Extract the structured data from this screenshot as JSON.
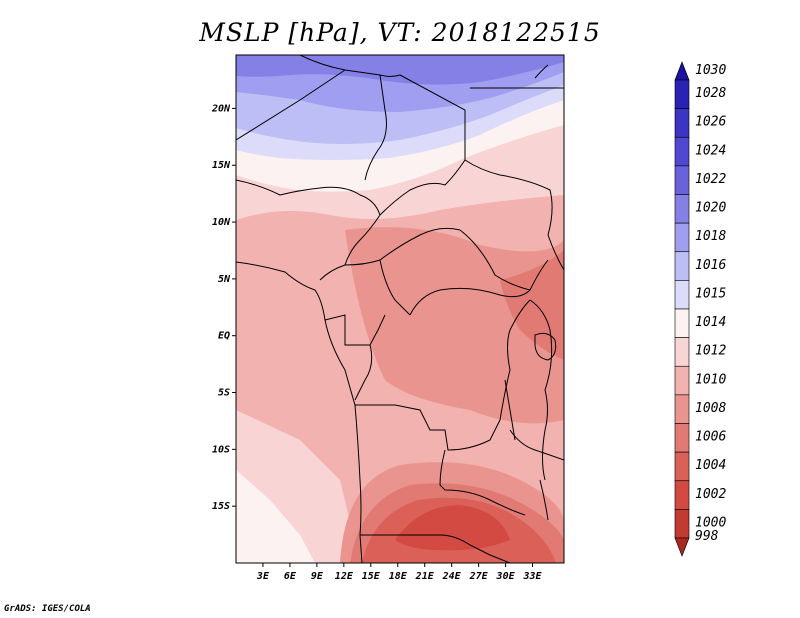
{
  "title": "MSLP [hPa], VT: 2018122515",
  "credit": "GrADS: IGES/COLA",
  "map": {
    "lat_range": [
      -20,
      24.7
    ],
    "lon_range": [
      0,
      36.5
    ],
    "lat_ticks": [
      {
        "value": 20,
        "label": "20N"
      },
      {
        "value": 15,
        "label": "15N"
      },
      {
        "value": 10,
        "label": "10N"
      },
      {
        "value": 5,
        "label": "5N"
      },
      {
        "value": 0,
        "label": "EQ"
      },
      {
        "value": -5,
        "label": "5S"
      },
      {
        "value": -10,
        "label": "10S"
      },
      {
        "value": -15,
        "label": "15S"
      }
    ],
    "lon_ticks": [
      {
        "value": 3,
        "label": "3E"
      },
      {
        "value": 6,
        "label": "6E"
      },
      {
        "value": 9,
        "label": "9E"
      },
      {
        "value": 12,
        "label": "12E"
      },
      {
        "value": 15,
        "label": "15E"
      },
      {
        "value": 18,
        "label": "18E"
      },
      {
        "value": 21,
        "label": "21E"
      },
      {
        "value": 24,
        "label": "24E"
      },
      {
        "value": 27,
        "label": "27E"
      },
      {
        "value": 30,
        "label": "30E"
      },
      {
        "value": 33,
        "label": "33E"
      }
    ]
  },
  "colorbar": {
    "levels": [
      {
        "label": "1030",
        "color": "#1a12a0"
      },
      {
        "label": "1028",
        "color": "#2a22b4"
      },
      {
        "label": "1026",
        "color": "#3c34c4"
      },
      {
        "label": "1024",
        "color": "#5048d0"
      },
      {
        "label": "1022",
        "color": "#6a62dc"
      },
      {
        "label": "1020",
        "color": "#8480e6"
      },
      {
        "label": "1018",
        "color": "#a09ef0"
      },
      {
        "label": "1016",
        "color": "#bebef6"
      },
      {
        "label": "1015",
        "color": "#dcdcfa"
      },
      {
        "label": "1014",
        "color": "#fdf2f2"
      },
      {
        "label": "1012",
        "color": "#f8d4d4"
      },
      {
        "label": "1010",
        "color": "#f2b2b0"
      },
      {
        "label": "1008",
        "color": "#ea9490"
      },
      {
        "label": "1006",
        "color": "#e27a74"
      },
      {
        "label": "1004",
        "color": "#da6058"
      },
      {
        "label": "1002",
        "color": "#d24a42"
      },
      {
        "label": "1000",
        "color": "#c23a30"
      },
      {
        "label": "998",
        "color": "#a82820"
      }
    ]
  }
}
